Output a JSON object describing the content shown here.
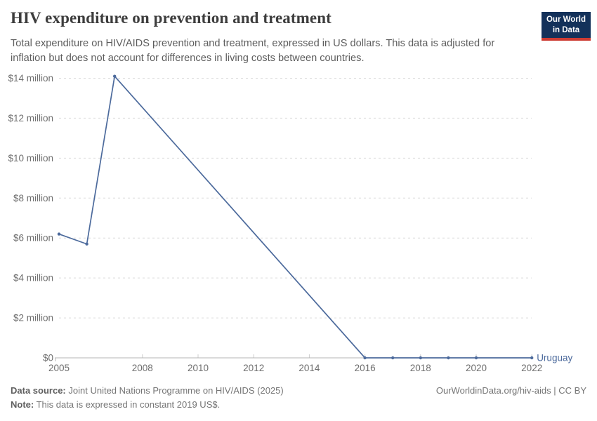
{
  "header": {
    "title": "HIV expenditure on prevention and treatment",
    "subtitle": "Total expenditure on HIV/AIDS prevention and treatment, expressed in US dollars. This data is adjusted for inflation but does not account for differences in living costs between countries.",
    "logo_line1": "Our World",
    "logo_line2": "in Data"
  },
  "chart_data": {
    "type": "line",
    "title": "HIV expenditure on prevention and treatment",
    "xlabel": "",
    "ylabel": "",
    "xlim": [
      2005,
      2022
    ],
    "ylim": [
      0,
      14000000
    ],
    "grid": "horizontal-dashed",
    "legend_position": "end-of-line-label",
    "x_ticks": [
      2005,
      2008,
      2010,
      2012,
      2014,
      2016,
      2018,
      2020,
      2022
    ],
    "y_ticks": [
      {
        "value": 0,
        "label": "$0"
      },
      {
        "value": 2000000,
        "label": "$2 million"
      },
      {
        "value": 4000000,
        "label": "$4 million"
      },
      {
        "value": 6000000,
        "label": "$6 million"
      },
      {
        "value": 8000000,
        "label": "$8 million"
      },
      {
        "value": 10000000,
        "label": "$10 million"
      },
      {
        "value": 12000000,
        "label": "$12 million"
      },
      {
        "value": 14000000,
        "label": "$14 million"
      }
    ],
    "series": [
      {
        "name": "Uruguay",
        "color": "#4c6a9c",
        "points": [
          {
            "year": 2005,
            "value": 6200000
          },
          {
            "year": 2006,
            "value": 5700000
          },
          {
            "year": 2007,
            "value": 14100000
          },
          {
            "year": 2016,
            "value": 0
          },
          {
            "year": 2017,
            "value": 0
          },
          {
            "year": 2018,
            "value": 0
          },
          {
            "year": 2019,
            "value": 0
          },
          {
            "year": 2020,
            "value": 0
          },
          {
            "year": 2022,
            "value": 0
          }
        ]
      }
    ]
  },
  "footer": {
    "source_label": "Data source:",
    "source_text": "Joint United Nations Programme on HIV/AIDS (2025)",
    "note_label": "Note:",
    "note_text": "This data is expressed in constant 2019 US$.",
    "credit": "OurWorldinData.org/hiv-aids | CC BY"
  },
  "colors": {
    "line": "#4c6a9c",
    "grid": "#dadada",
    "axis": "#b5b5b5",
    "tick_mark": "#cccccc",
    "tick_label": "#6e6e6e",
    "logo_bg": "#13315a",
    "logo_stripe": "#cc3b33"
  }
}
